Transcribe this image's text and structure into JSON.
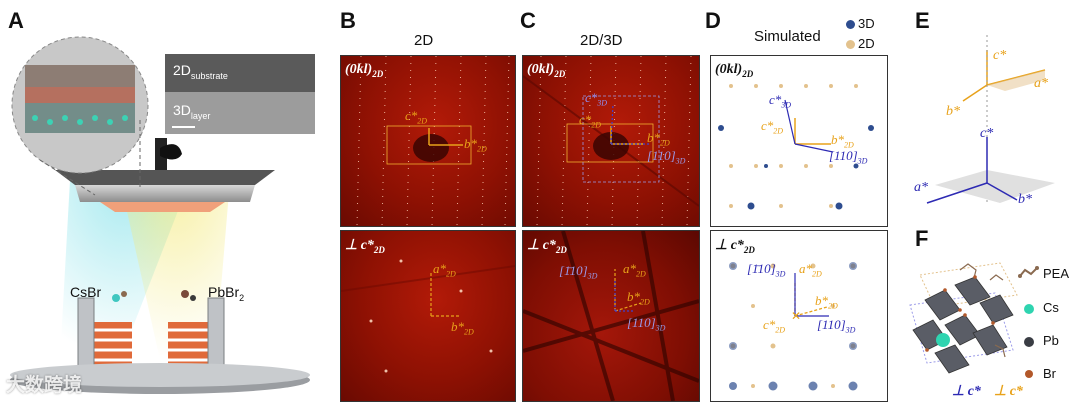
{
  "panels": {
    "A": {
      "letter": "A",
      "sem_top": "2D",
      "sem_top_sub": "substrate",
      "sem_bottom": "3D",
      "sem_bottom_sub": "layer",
      "source_left": "CsBr",
      "source_right": "PbBr",
      "source_right_sub": "2"
    },
    "B": {
      "letter": "B",
      "title": "2D",
      "top_label": "(0kl)",
      "top_label_sub": "2D",
      "bottom_label": "⊥ c*",
      "bottom_label_sub": "2D",
      "vec_c": "c*",
      "vec_b": "b*",
      "vec_a": "a*",
      "sub_2d": "2D"
    },
    "C": {
      "letter": "C",
      "title": "2D/3D",
      "top_label": "(0kl)",
      "top_label_sub": "2D",
      "bottom_label": "⊥ c*",
      "bottom_label_sub": "2D",
      "vec_c3d": "c*",
      "vec_c2d": "c*",
      "vec_b2d": "b*",
      "vec_a2d": "a*",
      "dir_110": "[110]",
      "dir_m110": "[1̄10]",
      "sub_3d": "3D",
      "sub_2d": "2D"
    },
    "D": {
      "letter": "D",
      "title": "Simulated",
      "legend_3d": "3D",
      "legend_2d": "2D",
      "top_label": "(0kl)",
      "top_label_sub": "2D",
      "bottom_label": "⊥ c*",
      "bottom_label_sub": "2D"
    },
    "E": {
      "letter": "E",
      "c_star": "c*",
      "a_star": "a*",
      "b_star": "b*"
    },
    "F": {
      "letter": "F",
      "legend_pea": "PEA",
      "legend_cs": "Cs",
      "legend_pb": "Pb",
      "legend_br": "Br",
      "bottom_blue": "⊥ c*",
      "bottom_orange": "⊥ c*"
    }
  },
  "colors": {
    "orange": "#e8a21a",
    "blue": "#2d2ab3",
    "dot_3d": "#2e4d8f",
    "dot_2d": "#e3c28d"
  },
  "watermark": "大数跨境"
}
